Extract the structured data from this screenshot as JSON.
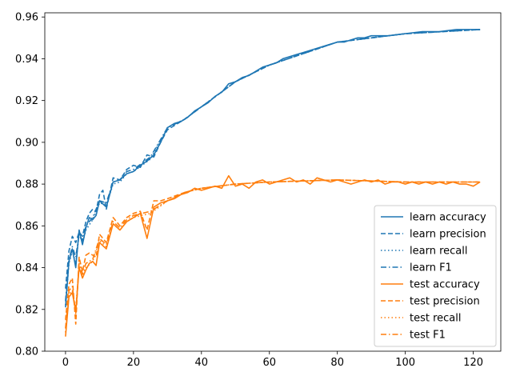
{
  "chart_data": {
    "type": "line",
    "title": "",
    "xlabel": "",
    "ylabel": "",
    "xlim": [
      -6.1,
      128.1
    ],
    "ylim": [
      0.8,
      0.962
    ],
    "xticks": [
      0,
      20,
      40,
      60,
      80,
      100,
      120
    ],
    "yticks": [
      0.8,
      0.82,
      0.84,
      0.86,
      0.88,
      0.9,
      0.92,
      0.94,
      0.96
    ],
    "ytick_labels": [
      "0.80",
      "0.82",
      "0.84",
      "0.86",
      "0.88",
      "0.90",
      "0.92",
      "0.94",
      "0.96"
    ],
    "grid": false,
    "legend_position": "lower-right",
    "series": [
      {
        "name": "learn accuracy",
        "color": "#1f77b4",
        "dash": "solid",
        "x": [
          0,
          1,
          2,
          3,
          4,
          5,
          6,
          7,
          8,
          9,
          10,
          12,
          14,
          16,
          18,
          20,
          22,
          24,
          26,
          28,
          30,
          32,
          34,
          36,
          38,
          40,
          42,
          44,
          46,
          48,
          50,
          52,
          54,
          56,
          58,
          60,
          62,
          64,
          66,
          68,
          70,
          72,
          74,
          76,
          78,
          80,
          82,
          84,
          86,
          88,
          90,
          95,
          100,
          105,
          110,
          115,
          120,
          122
        ],
        "values": [
          0.821,
          0.843,
          0.849,
          0.84,
          0.858,
          0.851,
          0.859,
          0.864,
          0.863,
          0.865,
          0.872,
          0.869,
          0.881,
          0.882,
          0.885,
          0.886,
          0.889,
          0.891,
          0.894,
          0.9,
          0.907,
          0.909,
          0.91,
          0.912,
          0.915,
          0.917,
          0.919,
          0.922,
          0.924,
          0.928,
          0.929,
          0.931,
          0.932,
          0.934,
          0.936,
          0.937,
          0.938,
          0.94,
          0.941,
          0.942,
          0.943,
          0.944,
          0.945,
          0.946,
          0.947,
          0.948,
          0.948,
          0.949,
          0.95,
          0.95,
          0.951,
          0.951,
          0.952,
          0.953,
          0.953,
          0.954,
          0.954,
          0.954
        ]
      },
      {
        "name": "learn precision",
        "color": "#1f77b4",
        "dash": "dashed",
        "x": [
          0,
          1,
          2,
          3,
          4,
          5,
          6,
          7,
          8,
          9,
          10,
          11,
          12,
          14,
          16,
          18,
          20,
          22,
          24,
          26,
          28,
          30,
          35,
          40,
          50,
          60,
          80,
          100,
          122
        ],
        "values": [
          0.83,
          0.848,
          0.855,
          0.852,
          0.857,
          0.855,
          0.862,
          0.866,
          0.868,
          0.867,
          0.875,
          0.877,
          0.868,
          0.883,
          0.882,
          0.887,
          0.889,
          0.888,
          0.894,
          0.893,
          0.9,
          0.906,
          0.911,
          0.917,
          0.929,
          0.937,
          0.948,
          0.952,
          0.954
        ]
      },
      {
        "name": "learn recall",
        "color": "#1f77b4",
        "dash": "dotted",
        "x": [
          0,
          1,
          2,
          3,
          4,
          5,
          6,
          8,
          10,
          12,
          14,
          16,
          18,
          20,
          25,
          30,
          35,
          40,
          50,
          60,
          80,
          100,
          122
        ],
        "values": [
          0.822,
          0.842,
          0.848,
          0.842,
          0.856,
          0.852,
          0.858,
          0.863,
          0.871,
          0.87,
          0.88,
          0.881,
          0.885,
          0.886,
          0.892,
          0.907,
          0.911,
          0.917,
          0.929,
          0.937,
          0.948,
          0.952,
          0.954
        ]
      },
      {
        "name": "learn F1",
        "color": "#1f77b4",
        "dash": "dashdot",
        "x": [
          0,
          1,
          2,
          3,
          4,
          5,
          6,
          8,
          10,
          12,
          14,
          16,
          18,
          20,
          25,
          30,
          35,
          40,
          50,
          60,
          80,
          100,
          122
        ],
        "values": [
          0.824,
          0.844,
          0.85,
          0.845,
          0.856,
          0.853,
          0.86,
          0.864,
          0.872,
          0.871,
          0.881,
          0.882,
          0.886,
          0.887,
          0.893,
          0.907,
          0.911,
          0.917,
          0.929,
          0.937,
          0.948,
          0.952,
          0.954
        ]
      },
      {
        "name": "test accuracy",
        "color": "#ff7f0e",
        "dash": "solid",
        "x": [
          0,
          1,
          2,
          3,
          4,
          5,
          6,
          7,
          8,
          9,
          10,
          12,
          14,
          16,
          18,
          20,
          22,
          24,
          26,
          28,
          30,
          32,
          34,
          36,
          38,
          40,
          42,
          44,
          46,
          48,
          50,
          52,
          54,
          56,
          58,
          60,
          62,
          64,
          66,
          68,
          70,
          72,
          74,
          76,
          78,
          80,
          82,
          84,
          86,
          88,
          90,
          92,
          94,
          96,
          98,
          100,
          102,
          104,
          106,
          108,
          110,
          112,
          114,
          116,
          118,
          120,
          122
        ],
        "values": [
          0.807,
          0.826,
          0.828,
          0.819,
          0.84,
          0.835,
          0.839,
          0.842,
          0.843,
          0.841,
          0.852,
          0.849,
          0.861,
          0.858,
          0.862,
          0.864,
          0.866,
          0.854,
          0.869,
          0.871,
          0.872,
          0.873,
          0.875,
          0.876,
          0.878,
          0.877,
          0.878,
          0.879,
          0.878,
          0.884,
          0.879,
          0.88,
          0.878,
          0.881,
          0.882,
          0.88,
          0.881,
          0.882,
          0.883,
          0.881,
          0.882,
          0.88,
          0.883,
          0.882,
          0.881,
          0.882,
          0.881,
          0.88,
          0.881,
          0.882,
          0.881,
          0.882,
          0.88,
          0.881,
          0.881,
          0.88,
          0.881,
          0.88,
          0.881,
          0.88,
          0.881,
          0.88,
          0.881,
          0.88,
          0.88,
          0.879,
          0.881
        ]
      },
      {
        "name": "test precision",
        "color": "#ff7f0e",
        "dash": "dashed",
        "x": [
          0,
          1,
          2,
          3,
          4,
          5,
          6,
          7,
          8,
          9,
          10,
          12,
          14,
          16,
          18,
          20,
          22,
          24,
          26,
          28,
          30,
          35,
          40,
          50,
          60,
          80,
          100,
          122
        ],
        "values": [
          0.815,
          0.832,
          0.835,
          0.813,
          0.845,
          0.838,
          0.846,
          0.847,
          0.846,
          0.845,
          0.856,
          0.852,
          0.864,
          0.86,
          0.864,
          0.866,
          0.867,
          0.858,
          0.872,
          0.872,
          0.873,
          0.876,
          0.878,
          0.88,
          0.881,
          0.882,
          0.881,
          0.881
        ]
      },
      {
        "name": "test recall",
        "color": "#ff7f0e",
        "dash": "dotted",
        "x": [
          0,
          1,
          2,
          3,
          4,
          5,
          6,
          8,
          10,
          12,
          14,
          16,
          18,
          20,
          25,
          30,
          35,
          40,
          50,
          60,
          80,
          100,
          122
        ],
        "values": [
          0.809,
          0.827,
          0.829,
          0.82,
          0.841,
          0.836,
          0.84,
          0.843,
          0.853,
          0.85,
          0.861,
          0.858,
          0.862,
          0.864,
          0.866,
          0.872,
          0.876,
          0.878,
          0.88,
          0.881,
          0.882,
          0.881,
          0.881
        ]
      },
      {
        "name": "test F1",
        "color": "#ff7f0e",
        "dash": "dashdot",
        "x": [
          0,
          1,
          2,
          3,
          4,
          5,
          6,
          8,
          10,
          12,
          14,
          16,
          18,
          20,
          25,
          30,
          35,
          40,
          50,
          60,
          80,
          100,
          122
        ],
        "values": [
          0.811,
          0.829,
          0.831,
          0.818,
          0.842,
          0.837,
          0.842,
          0.844,
          0.854,
          0.851,
          0.862,
          0.859,
          0.863,
          0.865,
          0.867,
          0.872,
          0.876,
          0.878,
          0.88,
          0.881,
          0.882,
          0.881,
          0.881
        ]
      }
    ]
  }
}
